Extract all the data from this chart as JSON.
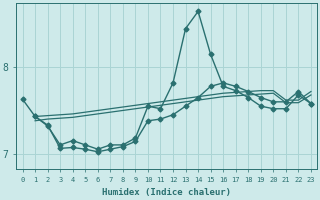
{
  "xlabel": "Humidex (Indice chaleur)",
  "background_color": "#ceeaea",
  "grid_color": "#aad4d4",
  "line_color": "#2a7070",
  "xlim": [
    -0.5,
    23.5
  ],
  "ylim": [
    6.82,
    8.75
  ],
  "yticks": [
    7,
    8
  ],
  "xticks": [
    0,
    1,
    2,
    3,
    4,
    5,
    6,
    7,
    8,
    9,
    10,
    11,
    12,
    13,
    14,
    15,
    16,
    17,
    18,
    19,
    20,
    21,
    22,
    23
  ],
  "lines": [
    {
      "x": [
        0,
        1,
        2,
        3,
        4,
        5,
        6,
        7,
        8,
        9,
        10,
        11,
        12,
        13,
        14,
        15,
        16,
        17,
        18,
        19,
        20,
        21,
        22,
        23
      ],
      "y": [
        7.63,
        7.43,
        7.32,
        7.1,
        7.15,
        7.1,
        7.05,
        7.1,
        7.1,
        7.18,
        7.55,
        7.52,
        7.82,
        8.45,
        8.65,
        8.15,
        7.78,
        7.73,
        7.65,
        7.55,
        7.52,
        7.52,
        7.68,
        7.58
      ],
      "marker": "D",
      "markersize": 2.5,
      "linewidth": 1.0
    },
    {
      "x": [
        1,
        2,
        3,
        4,
        5,
        6,
        7,
        8,
        9,
        10,
        11,
        12,
        13,
        14,
        15,
        16,
        17,
        18,
        19,
        20,
        21,
        22,
        23
      ],
      "y": [
        7.43,
        7.44,
        7.45,
        7.46,
        7.48,
        7.5,
        7.52,
        7.54,
        7.56,
        7.58,
        7.6,
        7.62,
        7.64,
        7.66,
        7.68,
        7.7,
        7.71,
        7.72,
        7.73,
        7.73,
        7.62,
        7.62,
        7.72
      ],
      "marker": null,
      "markersize": 0,
      "linewidth": 0.9
    },
    {
      "x": [
        1,
        2,
        3,
        4,
        5,
        6,
        7,
        8,
        9,
        10,
        11,
        12,
        13,
        14,
        15,
        16,
        17,
        18,
        19,
        20,
        21,
        22,
        23
      ],
      "y": [
        7.38,
        7.4,
        7.41,
        7.42,
        7.44,
        7.46,
        7.48,
        7.5,
        7.52,
        7.54,
        7.56,
        7.58,
        7.6,
        7.62,
        7.64,
        7.66,
        7.67,
        7.68,
        7.69,
        7.7,
        7.59,
        7.59,
        7.68
      ],
      "marker": null,
      "markersize": 0,
      "linewidth": 0.9
    },
    {
      "x": [
        1,
        2,
        3,
        4,
        5,
        6,
        7,
        8,
        9,
        10,
        11,
        12,
        13,
        14,
        15,
        16,
        17,
        18,
        19,
        20,
        21,
        22,
        23
      ],
      "y": [
        7.43,
        7.33,
        7.06,
        7.07,
        7.05,
        7.02,
        7.05,
        7.08,
        7.14,
        7.38,
        7.4,
        7.45,
        7.55,
        7.65,
        7.78,
        7.82,
        7.78,
        7.72,
        7.65,
        7.6,
        7.6,
        7.72,
        7.58
      ],
      "marker": "D",
      "markersize": 2.5,
      "linewidth": 1.0
    }
  ]
}
